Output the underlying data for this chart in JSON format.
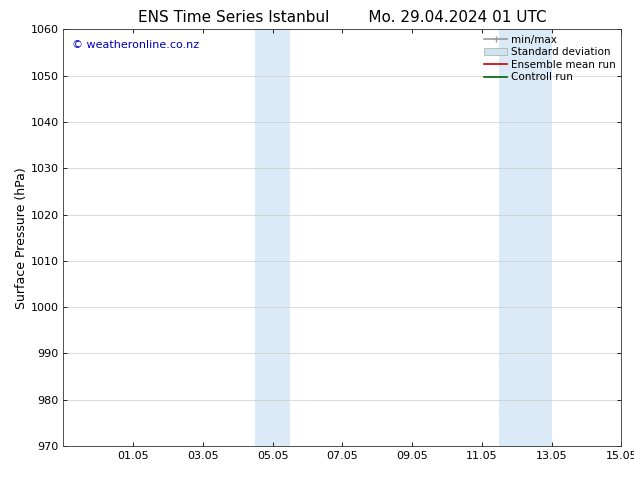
{
  "title_left": "ENS Time Series Istanbul",
  "title_right": "Mo. 29.04.2024 01 UTC",
  "ylabel": "Surface Pressure (hPa)",
  "ylim": [
    970,
    1060
  ],
  "yticks": [
    970,
    980,
    990,
    1000,
    1010,
    1020,
    1030,
    1040,
    1050,
    1060
  ],
  "xtick_labels": [
    "01.05",
    "03.05",
    "05.05",
    "07.05",
    "09.05",
    "11.05",
    "13.05",
    "15.05"
  ],
  "xtick_positions": [
    2,
    4,
    6,
    8,
    10,
    12,
    14,
    16
  ],
  "xlim": [
    0,
    16
  ],
  "shaded_bands": [
    {
      "x_start": 5.5,
      "x_end": 6.5
    },
    {
      "x_start": 12.5,
      "x_end": 14.0
    }
  ],
  "shaded_color": "#daeaf6",
  "background_color": "#ffffff",
  "watermark_text": "© weatheronline.co.nz",
  "watermark_color": "#0000bb",
  "legend_items": [
    {
      "label": "min/max",
      "color": "#aaaaaa",
      "style": "bar"
    },
    {
      "label": "Standard deviation",
      "color": "#d0e4f0",
      "style": "rect"
    },
    {
      "label": "Ensemble mean run",
      "color": "#cc0000",
      "style": "line"
    },
    {
      "label": "Controll run",
      "color": "#006600",
      "style": "line"
    }
  ],
  "grid_color": "#cccccc",
  "title_fontsize": 11,
  "tick_fontsize": 8,
  "label_fontsize": 9,
  "legend_fontsize": 7.5
}
